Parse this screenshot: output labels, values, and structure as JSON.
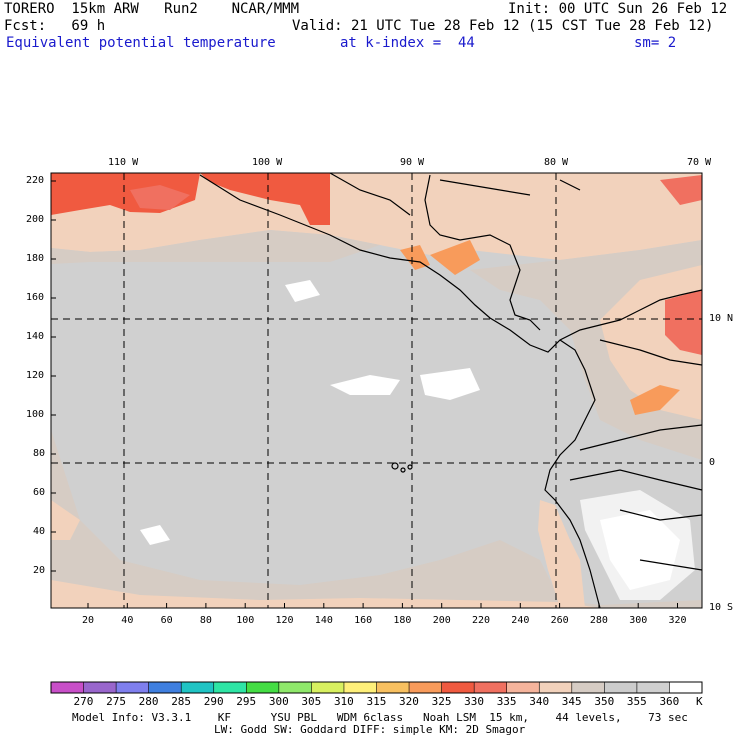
{
  "header": {
    "model": "TORERO  15km ARW   Run2    NCAR/MMM",
    "init": "Init: 00 UTC Sun 26 Feb 12",
    "fcst": "Fcst:   69 h",
    "valid": "Valid: 21 UTC Tue 28 Feb 12 (15 CST Tue 28 Feb 12)",
    "field": "Equivalent potential temperature",
    "level": "at k-index =  44",
    "smooth": "sm= 2"
  },
  "map": {
    "lon_labels": [
      "110 W",
      "100 W",
      "90 W",
      "80 W",
      "70 W"
    ],
    "lat_labels": [
      "10 N",
      "0",
      "10 S"
    ],
    "y_ticks": [
      "220",
      "200",
      "180",
      "160",
      "140",
      "120",
      "100",
      "80",
      "60",
      "40",
      "20"
    ],
    "x_ticks": [
      "20",
      "40",
      "60",
      "80",
      "100",
      "120",
      "140",
      "160",
      "180",
      "200",
      "220",
      "240",
      "260",
      "280",
      "300",
      "320"
    ]
  },
  "colorbar": {
    "unit": "K",
    "labels": [
      "270",
      "275",
      "280",
      "285",
      "290",
      "295",
      "300",
      "305",
      "310",
      "315",
      "320",
      "325",
      "330",
      "335",
      "340",
      "345",
      "350",
      "355",
      "360"
    ],
    "colors": [
      "#c84fc8",
      "#9966cc",
      "#7f7fee",
      "#3f7fdf",
      "#20c4c4",
      "#2ee5a5",
      "#44dd44",
      "#8fe86b",
      "#d8f060",
      "#fff07a",
      "#f8c060",
      "#f89b5b",
      "#f05a40",
      "#f07060",
      "#f5b49c",
      "#f2d2bc",
      "#d6ccc4",
      "#cccccc",
      "#d0d0d0",
      "#ffffff"
    ]
  },
  "footer": {
    "line1": "Model Info: V3.3.1    KF      YSU PBL   WDM 6class   Noah LSM  15 km,    44 levels,    73 sec",
    "line2": "LW: Godd SW: Goddard DIFF: simple KM: 2D Smagor"
  }
}
